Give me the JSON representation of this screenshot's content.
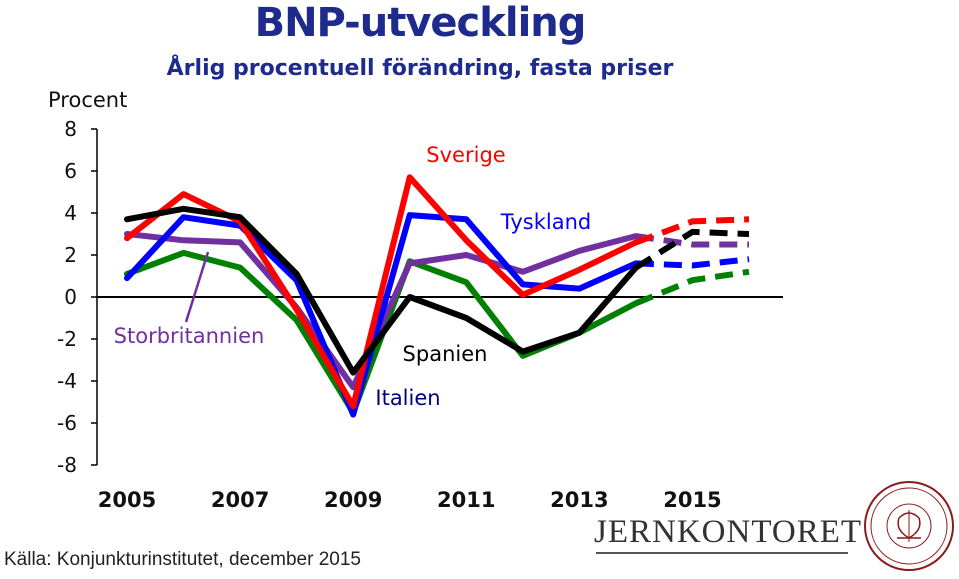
{
  "chart_data": {
    "type": "line",
    "title": "BNP-utveckling",
    "subtitle": "Årlig procentuell förändring, fasta priser",
    "ylabel": "Procent",
    "xlabel": "",
    "ylim": [
      -8,
      8
    ],
    "xlim": [
      2004.5,
      2016.5
    ],
    "y_ticks": [
      8,
      6,
      4,
      2,
      0,
      -2,
      -4,
      -6,
      -8
    ],
    "y_tick_labels": [
      "8",
      "6",
      "4",
      "2",
      "0",
      "-2",
      "-4",
      "-6",
      "-8"
    ],
    "x_ticks": [
      2005,
      2007,
      2009,
      2011,
      2013,
      2015
    ],
    "x_tick_labels": [
      "2005",
      "2007",
      "2009",
      "2011",
      "2013",
      "2015"
    ],
    "grid": false,
    "forecast_from": 2014,
    "x": [
      2004,
      2005,
      2006,
      2007,
      2008,
      2009,
      2010,
      2011,
      2012,
      2013,
      2014,
      2015,
      2016
    ],
    "series": [
      {
        "name": "Sverige",
        "color": "#ff0000",
        "values": [
          null,
          2.8,
          4.9,
          3.6,
          -0.6,
          -5.2,
          5.7,
          2.7,
          0.1,
          1.3,
          2.6,
          3.6,
          3.7
        ]
      },
      {
        "name": "Tyskland",
        "color": "#0000ff",
        "values": [
          null,
          0.9,
          3.8,
          3.4,
          0.8,
          -5.6,
          3.9,
          3.7,
          0.6,
          0.4,
          1.6,
          1.5,
          1.8
        ]
      },
      {
        "name": "Storbritannien",
        "color": "#7030a0",
        "values": [
          null,
          3.0,
          2.7,
          2.6,
          -0.5,
          -4.3,
          1.6,
          2.0,
          1.2,
          2.2,
          2.9,
          2.5,
          2.5
        ]
      },
      {
        "name": "Spanien",
        "color": "#000000",
        "values": [
          null,
          3.7,
          4.2,
          3.8,
          1.1,
          -3.6,
          0.0,
          -1.0,
          -2.6,
          -1.7,
          1.4,
          3.1,
          3.0
        ]
      },
      {
        "name": "Italien",
        "color": "#008000",
        "values": [
          null,
          1.1,
          2.1,
          1.4,
          -1.1,
          -5.5,
          1.7,
          0.7,
          -2.8,
          -1.7,
          -0.3,
          0.8,
          1.2
        ]
      }
    ],
    "labels": [
      {
        "text": "Sverige",
        "color": "#ff0000"
      },
      {
        "text": "Tyskland",
        "color": "#0000ff"
      },
      {
        "text": "Storbritannien",
        "color": "#7030a0"
      },
      {
        "text": "Spanien",
        "color": "#000000"
      },
      {
        "text": "Italien",
        "color": "#000080"
      }
    ]
  },
  "source": "Källa: Konjunkturinstitutet, december 2015",
  "brand": "JERNKONTORET",
  "seal_text": "JERN CONTOIRETS SIGILL"
}
